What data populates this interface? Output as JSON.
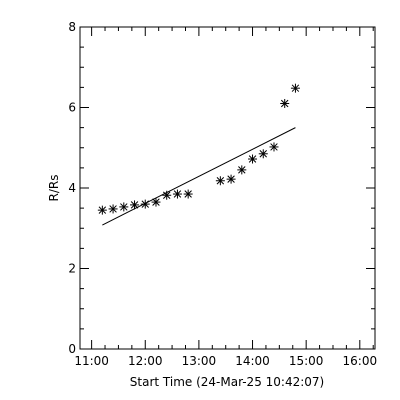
{
  "chart_data": {
    "type": "scatter",
    "title": "",
    "xlabel": "Start Time (24-Mar-25 10:42:07)",
    "ylabel": "R/Rs",
    "xlim": [
      "10:47",
      "16:17"
    ],
    "ylim": [
      0,
      8
    ],
    "x_ticks": [
      "11:00",
      "12:00",
      "13:00",
      "14:00",
      "15:00",
      "16:00"
    ],
    "y_ticks": [
      "0",
      "2",
      "4",
      "6",
      "8"
    ],
    "grid": false,
    "marker": "asterisk",
    "points": [
      {
        "x": "11:12",
        "y": 3.45
      },
      {
        "x": "11:24",
        "y": 3.48
      },
      {
        "x": "11:36",
        "y": 3.53
      },
      {
        "x": "11:48",
        "y": 3.58
      },
      {
        "x": "12:00",
        "y": 3.6
      },
      {
        "x": "12:12",
        "y": 3.65
      },
      {
        "x": "12:24",
        "y": 3.82
      },
      {
        "x": "12:36",
        "y": 3.85
      },
      {
        "x": "12:48",
        "y": 3.85
      },
      {
        "x": "13:24",
        "y": 4.18
      },
      {
        "x": "13:36",
        "y": 4.22
      },
      {
        "x": "13:48",
        "y": 4.45
      },
      {
        "x": "14:00",
        "y": 4.72
      },
      {
        "x": "14:12",
        "y": 4.85
      },
      {
        "x": "14:24",
        "y": 5.02
      },
      {
        "x": "14:36",
        "y": 6.1
      },
      {
        "x": "14:48",
        "y": 6.48
      }
    ],
    "fit_line": {
      "x": [
        "11:12",
        "14:48"
      ],
      "y": [
        3.08,
        5.5
      ]
    }
  }
}
